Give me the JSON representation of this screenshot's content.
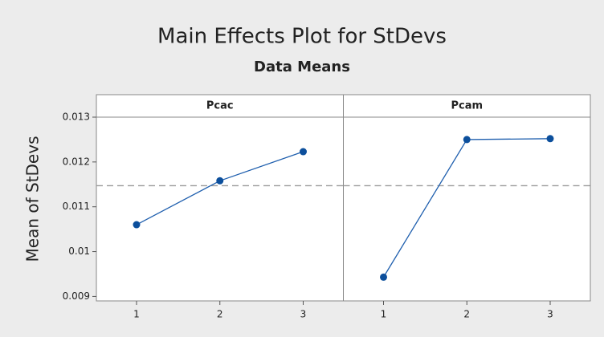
{
  "chart_data": {
    "type": "line",
    "title": "Main Effects Plot for StDevs",
    "subtitle": "Data Means",
    "ylabel": "Mean of StDevs",
    "ylim": [
      0.0089,
      0.013
    ],
    "yticks": [
      0.009,
      0.01,
      0.011,
      0.012,
      0.013
    ],
    "reference_line": 0.01147,
    "color": "#1f5fae",
    "panels": [
      {
        "title": "Pcac",
        "categories": [
          "1",
          "2",
          "3"
        ],
        "values": [
          0.0106,
          0.01158,
          0.01223
        ]
      },
      {
        "title": "Pcam",
        "categories": [
          "1",
          "2",
          "3"
        ],
        "values": [
          0.00943,
          0.0125,
          0.01252
        ]
      }
    ]
  }
}
